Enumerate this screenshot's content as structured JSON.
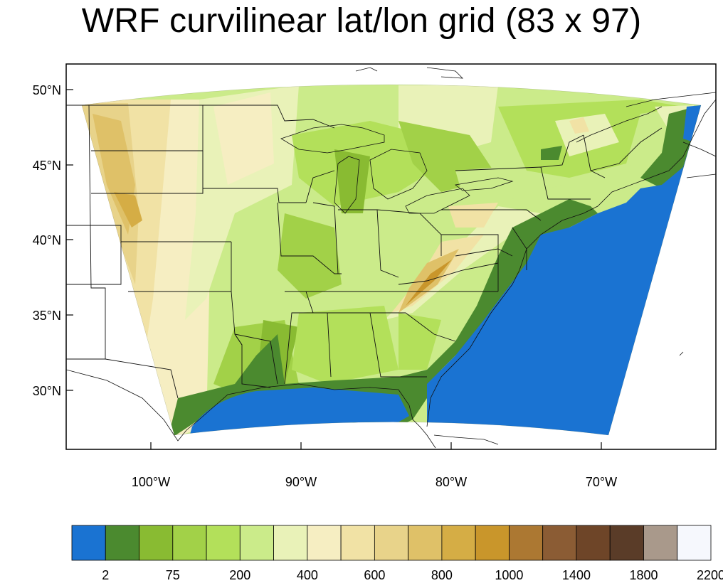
{
  "title": "WRF curvilinear lat/lon grid (83 x 97)",
  "axes": {
    "lat_ticks": [
      {
        "lat": 50,
        "label": "50°N"
      },
      {
        "lat": 45,
        "label": "45°N"
      },
      {
        "lat": 40,
        "label": "40°N"
      },
      {
        "lat": 35,
        "label": "35°N"
      },
      {
        "lat": 30,
        "label": "30°N"
      }
    ],
    "lon_ticks": [
      {
        "lon": -100,
        "label": "100°W"
      },
      {
        "lon": -90,
        "label": "90°W"
      },
      {
        "lon": -80,
        "label": "80°W"
      },
      {
        "lon": -70,
        "label": "70°W"
      }
    ]
  },
  "colorbar": {
    "colors": [
      "#1a73d2",
      "#4b8a2f",
      "#89bb32",
      "#a2d148",
      "#b3e05a",
      "#cbeb8a",
      "#e9f2b8",
      "#f6eec2",
      "#f1e2a5",
      "#e8d38a",
      "#dfc168",
      "#d5ad45",
      "#c9962b",
      "#ac7832",
      "#8b5c34",
      "#6e4528",
      "#5a3c28",
      "#a9998b",
      "#f6f8fd"
    ],
    "labels": [
      {
        "after_index": 0,
        "text": "2"
      },
      {
        "after_index": 2,
        "text": "75"
      },
      {
        "after_index": 4,
        "text": "200"
      },
      {
        "after_index": 6,
        "text": "400"
      },
      {
        "after_index": 8,
        "text": "600"
      },
      {
        "after_index": 10,
        "text": "800"
      },
      {
        "after_index": 12,
        "text": "1000"
      },
      {
        "after_index": 14,
        "text": "1400"
      },
      {
        "after_index": 16,
        "text": "1800"
      },
      {
        "after_index": 18,
        "text": "2200"
      }
    ]
  },
  "legend_colors": {
    "ocean": "#1a73d2",
    "coast": "#4b8a2f",
    "lowland": "#a2d148",
    "plains": "#f1e2a5",
    "mountain": "#c9962b"
  }
}
